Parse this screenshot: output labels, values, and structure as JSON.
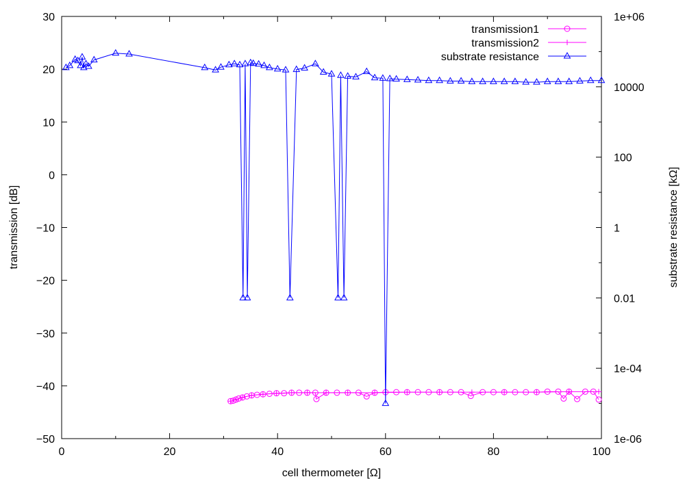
{
  "chart_data": {
    "type": "line",
    "xlabel": "cell thermometer [Ω]",
    "ylabel": "transmission [dB]",
    "y2label": "substrate resistance [kΩ]",
    "xlim": [
      0,
      100
    ],
    "ylim": [
      -50,
      30
    ],
    "y2lim": [
      1e-06,
      1000000.0
    ],
    "y2scale": "log",
    "grid": false,
    "legend_position": "top-right",
    "xticks": [
      0,
      20,
      40,
      60,
      80,
      100
    ],
    "yticks": [
      -50,
      -40,
      -30,
      -20,
      -10,
      0,
      10,
      20,
      30
    ],
    "y2ticks": [
      "1e-06",
      "1e-04",
      "0.01",
      "1",
      "100",
      "10000",
      "1e+06"
    ],
    "y2tick_values": [
      1e-06,
      0.0001,
      0.01,
      1,
      100,
      10000,
      1000000
    ],
    "series": [
      {
        "name": "transmission1",
        "axis": "left",
        "marker": "circle",
        "color": "#ff00ff",
        "x": [
          31.3,
          31.8,
          32.3,
          32.8,
          33.5,
          34.3,
          35.2,
          36.2,
          37.3,
          38.5,
          39.8,
          41.2,
          42.6,
          44.0,
          45.5,
          47.0,
          47.2,
          49.0,
          51.0,
          53.0,
          55.0,
          56.5,
          58.0,
          60.0,
          62.0,
          64.0,
          66.0,
          68.0,
          70.0,
          72.0,
          74.0,
          75.8,
          78.0,
          80.0,
          82.0,
          84.0,
          86.0,
          88.0,
          90.0,
          92.0,
          93.0,
          94.0,
          95.5,
          97.0,
          98.5,
          99.5
        ],
        "y": [
          -42.9,
          -42.8,
          -42.6,
          -42.4,
          -42.2,
          -42.0,
          -41.8,
          -41.7,
          -41.6,
          -41.5,
          -41.4,
          -41.4,
          -41.3,
          -41.3,
          -41.3,
          -41.3,
          -42.5,
          -41.3,
          -41.3,
          -41.3,
          -41.3,
          -42.0,
          -41.3,
          -41.2,
          -41.2,
          -41.2,
          -41.2,
          -41.2,
          -41.2,
          -41.2,
          -41.2,
          -41.9,
          -41.2,
          -41.2,
          -41.2,
          -41.2,
          -41.2,
          -41.2,
          -41.1,
          -41.1,
          -42.4,
          -41.1,
          -42.5,
          -41.1,
          -41.1,
          -42.6
        ]
      },
      {
        "name": "transmission2",
        "axis": "left",
        "marker": "plus",
        "color": "#ff00ff",
        "x": [
          31.3,
          32.3,
          33.5,
          35.2,
          37.3,
          39.8,
          42.6,
          45.5,
          49.0,
          53.0,
          58.0,
          64.0,
          70.0,
          76.0,
          82.0,
          88.0,
          94.0,
          99.5
        ],
        "y": [
          -42.9,
          -42.6,
          -42.2,
          -41.8,
          -41.6,
          -41.4,
          -41.3,
          -41.3,
          -41.3,
          -41.3,
          -41.3,
          -41.2,
          -41.2,
          -41.2,
          -41.2,
          -41.2,
          -41.1,
          -41.1
        ]
      },
      {
        "name": "substrate resistance",
        "axis": "right",
        "marker": "triangle",
        "color": "#0000ff",
        "x": [
          0.8,
          1.5,
          2.5,
          3.0,
          3.5,
          3.8,
          4.1,
          4.5,
          5.0,
          6.0,
          10.0,
          12.5,
          26.5,
          28.5,
          29.5,
          31.0,
          32.0,
          33.0,
          33.6,
          34.0,
          34.4,
          35.0,
          35.5,
          36.5,
          37.5,
          38.5,
          40.0,
          41.5,
          42.3,
          43.5,
          45.0,
          47.0,
          48.5,
          50.0,
          51.2,
          51.7,
          52.3,
          53.0,
          54.5,
          56.5,
          58.0,
          59.5,
          60.0,
          60.8,
          62.0,
          64.0,
          66.0,
          68.0,
          70.0,
          72.0,
          74.0,
          76.0,
          78.0,
          80.0,
          82.0,
          84.0,
          86.0,
          88.0,
          90.0,
          92.0,
          94.0,
          96.0,
          98.0,
          100.0
        ],
        "y": [
          35000,
          40000,
          60000,
          55000,
          40000,
          70000,
          35000,
          45000,
          38000,
          58000,
          90000,
          85000,
          35000,
          30000,
          36000,
          42000,
          45000,
          42000,
          0.01,
          45000,
          0.01,
          48000,
          46000,
          44000,
          40000,
          35000,
          32000,
          30000,
          0.01,
          31000,
          34000,
          45000,
          26000,
          23000,
          0.01,
          21000,
          0.01,
          20000,
          19000,
          27000,
          18000,
          17500,
          1e-05,
          17000,
          16500,
          16000,
          15500,
          15000,
          15000,
          14500,
          14500,
          14000,
          14000,
          14000,
          14000,
          14000,
          13500,
          13500,
          14000,
          14000,
          14000,
          14500,
          15000,
          15000
        ]
      }
    ]
  }
}
